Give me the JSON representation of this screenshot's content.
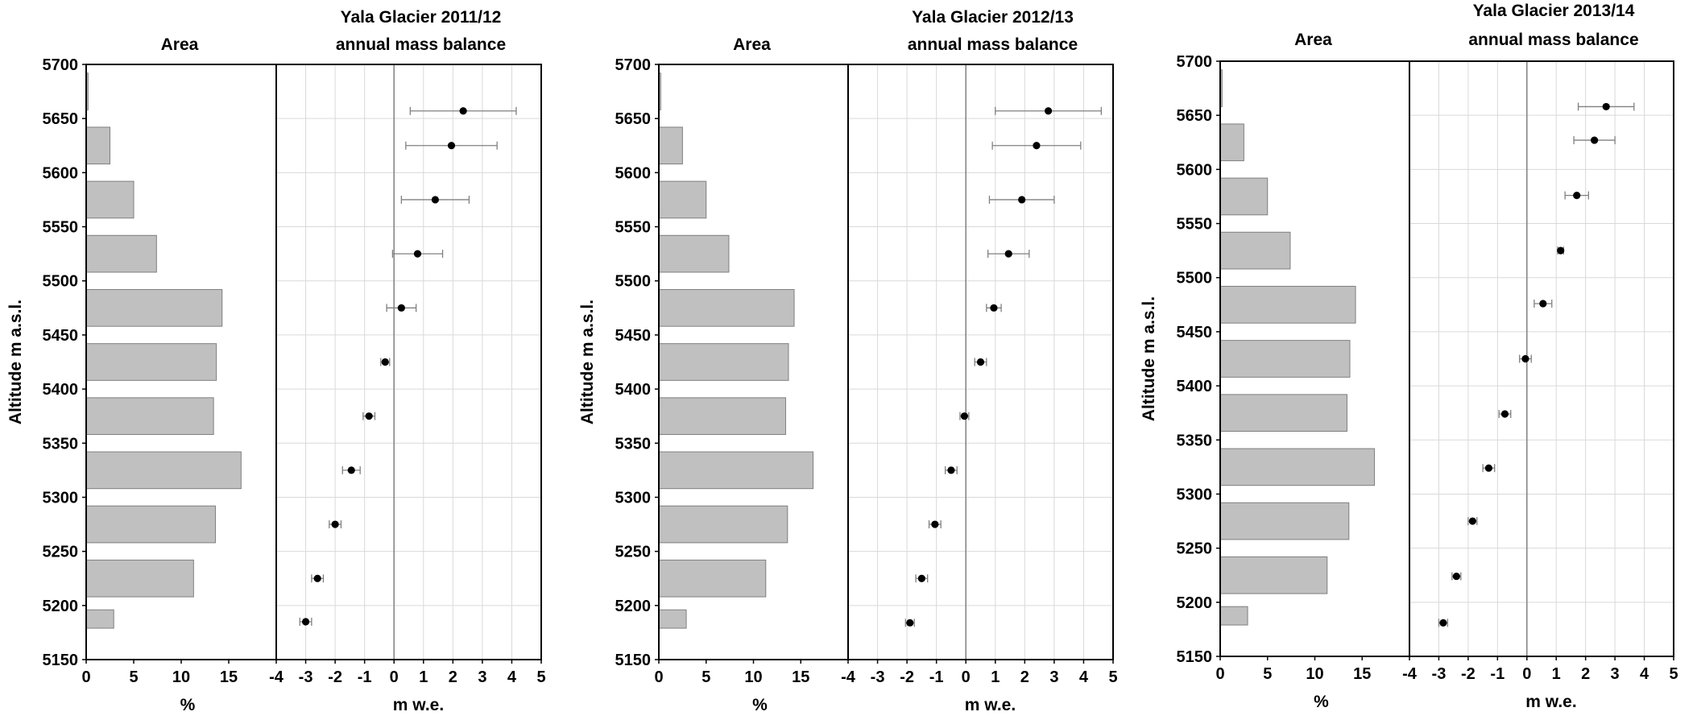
{
  "chart_data": [
    {
      "type": "bar+scatter",
      "title": "Yala  Glacier  2011/12",
      "area_title": "Area",
      "mb_title": "annual mass balance",
      "ylabel": "Altitude m a.s.l.",
      "area_xlabel": "%",
      "mb_xlabel": "m w.e.",
      "ylim": [
        5150,
        5700
      ],
      "yticks": [
        5150,
        5200,
        5250,
        5300,
        5350,
        5400,
        5450,
        5500,
        5550,
        5600,
        5650,
        5700
      ],
      "area_xlim": [
        0,
        20
      ],
      "area_xticks": [
        0,
        5,
        10,
        15
      ],
      "mb_xlim": [
        -4,
        5
      ],
      "mb_xticks": [
        -4,
        -3,
        -2,
        -1,
        0,
        1,
        2,
        3,
        4,
        5
      ],
      "grid": true,
      "area": [
        {
          "band": [
            5175,
            5200
          ],
          "value": 2.9
        },
        {
          "band": [
            5200,
            5250
          ],
          "value": 11.3
        },
        {
          "band": [
            5250,
            5300
          ],
          "value": 13.6
        },
        {
          "band": [
            5300,
            5350
          ],
          "value": 16.3
        },
        {
          "band": [
            5350,
            5400
          ],
          "value": 13.4
        },
        {
          "band": [
            5400,
            5450
          ],
          "value": 13.7
        },
        {
          "band": [
            5450,
            5500
          ],
          "value": 14.3
        },
        {
          "band": [
            5500,
            5550
          ],
          "value": 7.4
        },
        {
          "band": [
            5550,
            5600
          ],
          "value": 5.0
        },
        {
          "band": [
            5600,
            5650
          ],
          "value": 2.5
        },
        {
          "band": [
            5650,
            5700
          ],
          "value": 0.2
        }
      ],
      "mass_balance": [
        {
          "altitude": 5185,
          "value": -3.0,
          "err": 0.2
        },
        {
          "altitude": 5225,
          "value": -2.6,
          "err": 0.2
        },
        {
          "altitude": 5275,
          "value": -2.0,
          "err": 0.2
        },
        {
          "altitude": 5325,
          "value": -1.45,
          "err": 0.3
        },
        {
          "altitude": 5375,
          "value": -0.85,
          "err": 0.2
        },
        {
          "altitude": 5425,
          "value": -0.3,
          "err": 0.15
        },
        {
          "altitude": 5475,
          "value": 0.25,
          "err": 0.5
        },
        {
          "altitude": 5525,
          "value": 0.8,
          "err": 0.85
        },
        {
          "altitude": 5575,
          "value": 1.4,
          "err": 1.15
        },
        {
          "altitude": 5625,
          "value": 1.95,
          "err": 1.55
        },
        {
          "altitude": 5657,
          "value": 2.35,
          "err": 1.8
        }
      ]
    },
    {
      "type": "bar+scatter",
      "title": "Yala  Glacier  2012/13",
      "area_title": "Area",
      "mb_title": "annual mass balance",
      "ylabel": "Altitude m a.s.l.",
      "area_xlabel": "%",
      "mb_xlabel": "m w.e.",
      "ylim": [
        5150,
        5700
      ],
      "yticks": [
        5150,
        5200,
        5250,
        5300,
        5350,
        5400,
        5450,
        5500,
        5550,
        5600,
        5650,
        5700
      ],
      "area_xlim": [
        0,
        20
      ],
      "area_xticks": [
        0,
        5,
        10,
        15
      ],
      "mb_xlim": [
        -4,
        5
      ],
      "mb_xticks": [
        -4,
        -3,
        -2,
        -1,
        0,
        1,
        2,
        3,
        4,
        5
      ],
      "grid": true,
      "area": [
        {
          "band": [
            5175,
            5200
          ],
          "value": 2.9
        },
        {
          "band": [
            5200,
            5250
          ],
          "value": 11.3
        },
        {
          "band": [
            5250,
            5300
          ],
          "value": 13.6
        },
        {
          "band": [
            5300,
            5350
          ],
          "value": 16.3
        },
        {
          "band": [
            5350,
            5400
          ],
          "value": 13.4
        },
        {
          "band": [
            5400,
            5450
          ],
          "value": 13.7
        },
        {
          "band": [
            5450,
            5500
          ],
          "value": 14.3
        },
        {
          "band": [
            5500,
            5550
          ],
          "value": 7.4
        },
        {
          "band": [
            5550,
            5600
          ],
          "value": 5.0
        },
        {
          "band": [
            5600,
            5650
          ],
          "value": 2.5
        },
        {
          "band": [
            5650,
            5700
          ],
          "value": 0.2
        }
      ],
      "mass_balance": [
        {
          "altitude": 5184,
          "value": -1.9,
          "err": 0.15
        },
        {
          "altitude": 5225,
          "value": -1.5,
          "err": 0.2
        },
        {
          "altitude": 5275,
          "value": -1.05,
          "err": 0.2
        },
        {
          "altitude": 5325,
          "value": -0.5,
          "err": 0.2
        },
        {
          "altitude": 5375,
          "value": -0.05,
          "err": 0.15
        },
        {
          "altitude": 5425,
          "value": 0.5,
          "err": 0.2
        },
        {
          "altitude": 5475,
          "value": 0.95,
          "err": 0.25
        },
        {
          "altitude": 5525,
          "value": 1.45,
          "err": 0.7
        },
        {
          "altitude": 5575,
          "value": 1.9,
          "err": 1.1
        },
        {
          "altitude": 5625,
          "value": 2.4,
          "err": 1.5
        },
        {
          "altitude": 5657,
          "value": 2.8,
          "err": 1.8
        }
      ]
    },
    {
      "type": "bar+scatter",
      "title": "Yala  Glacier  2013/14",
      "area_title": "Area",
      "mb_title": "annual mass balance",
      "ylabel": "Altitude m a.s.l.",
      "area_xlabel": "%",
      "mb_xlabel": "m w.e.",
      "ylim": [
        5150,
        5700
      ],
      "yticks": [
        5150,
        5200,
        5250,
        5300,
        5350,
        5400,
        5450,
        5500,
        5550,
        5600,
        5650,
        5700
      ],
      "area_xlim": [
        0,
        20
      ],
      "area_xticks": [
        0,
        5,
        10,
        15
      ],
      "mb_xlim": [
        -4,
        5
      ],
      "mb_xticks": [
        -4,
        -3,
        -2,
        -1,
        0,
        1,
        2,
        3,
        4,
        5
      ],
      "grid": true,
      "area": [
        {
          "band": [
            5175,
            5200
          ],
          "value": 2.9
        },
        {
          "band": [
            5200,
            5250
          ],
          "value": 11.3
        },
        {
          "band": [
            5250,
            5300
          ],
          "value": 13.6
        },
        {
          "band": [
            5300,
            5350
          ],
          "value": 16.3
        },
        {
          "band": [
            5350,
            5400
          ],
          "value": 13.4
        },
        {
          "band": [
            5400,
            5450
          ],
          "value": 13.7
        },
        {
          "band": [
            5450,
            5500
          ],
          "value": 14.3
        },
        {
          "band": [
            5500,
            5550
          ],
          "value": 7.4
        },
        {
          "band": [
            5550,
            5600
          ],
          "value": 5.0
        },
        {
          "band": [
            5600,
            5650
          ],
          "value": 2.5
        },
        {
          "band": [
            5650,
            5700
          ],
          "value": 0.2
        }
      ],
      "mass_balance": [
        {
          "altitude": 5181,
          "value": -2.85,
          "err": 0.15
        },
        {
          "altitude": 5224,
          "value": -2.4,
          "err": 0.15
        },
        {
          "altitude": 5275,
          "value": -1.85,
          "err": 0.15
        },
        {
          "altitude": 5324,
          "value": -1.3,
          "err": 0.2
        },
        {
          "altitude": 5374,
          "value": -0.75,
          "err": 0.2
        },
        {
          "altitude": 5425,
          "value": -0.05,
          "err": 0.2
        },
        {
          "altitude": 5476,
          "value": 0.55,
          "err": 0.3
        },
        {
          "altitude": 5525,
          "value": 1.15,
          "err": 0.1
        },
        {
          "altitude": 5576,
          "value": 1.7,
          "err": 0.4
        },
        {
          "altitude": 5627,
          "value": 2.3,
          "err": 0.7
        },
        {
          "altitude": 5658,
          "value": 2.7,
          "err": 0.95
        }
      ]
    }
  ],
  "colors": {
    "bar_fill": "#c0c0c0",
    "bar_stroke": "#7f7f7f",
    "grid": "#d9d9d9",
    "axis": "#000000",
    "zero_line": "#808080",
    "marker": "#000000",
    "error_bar": "#808080"
  }
}
